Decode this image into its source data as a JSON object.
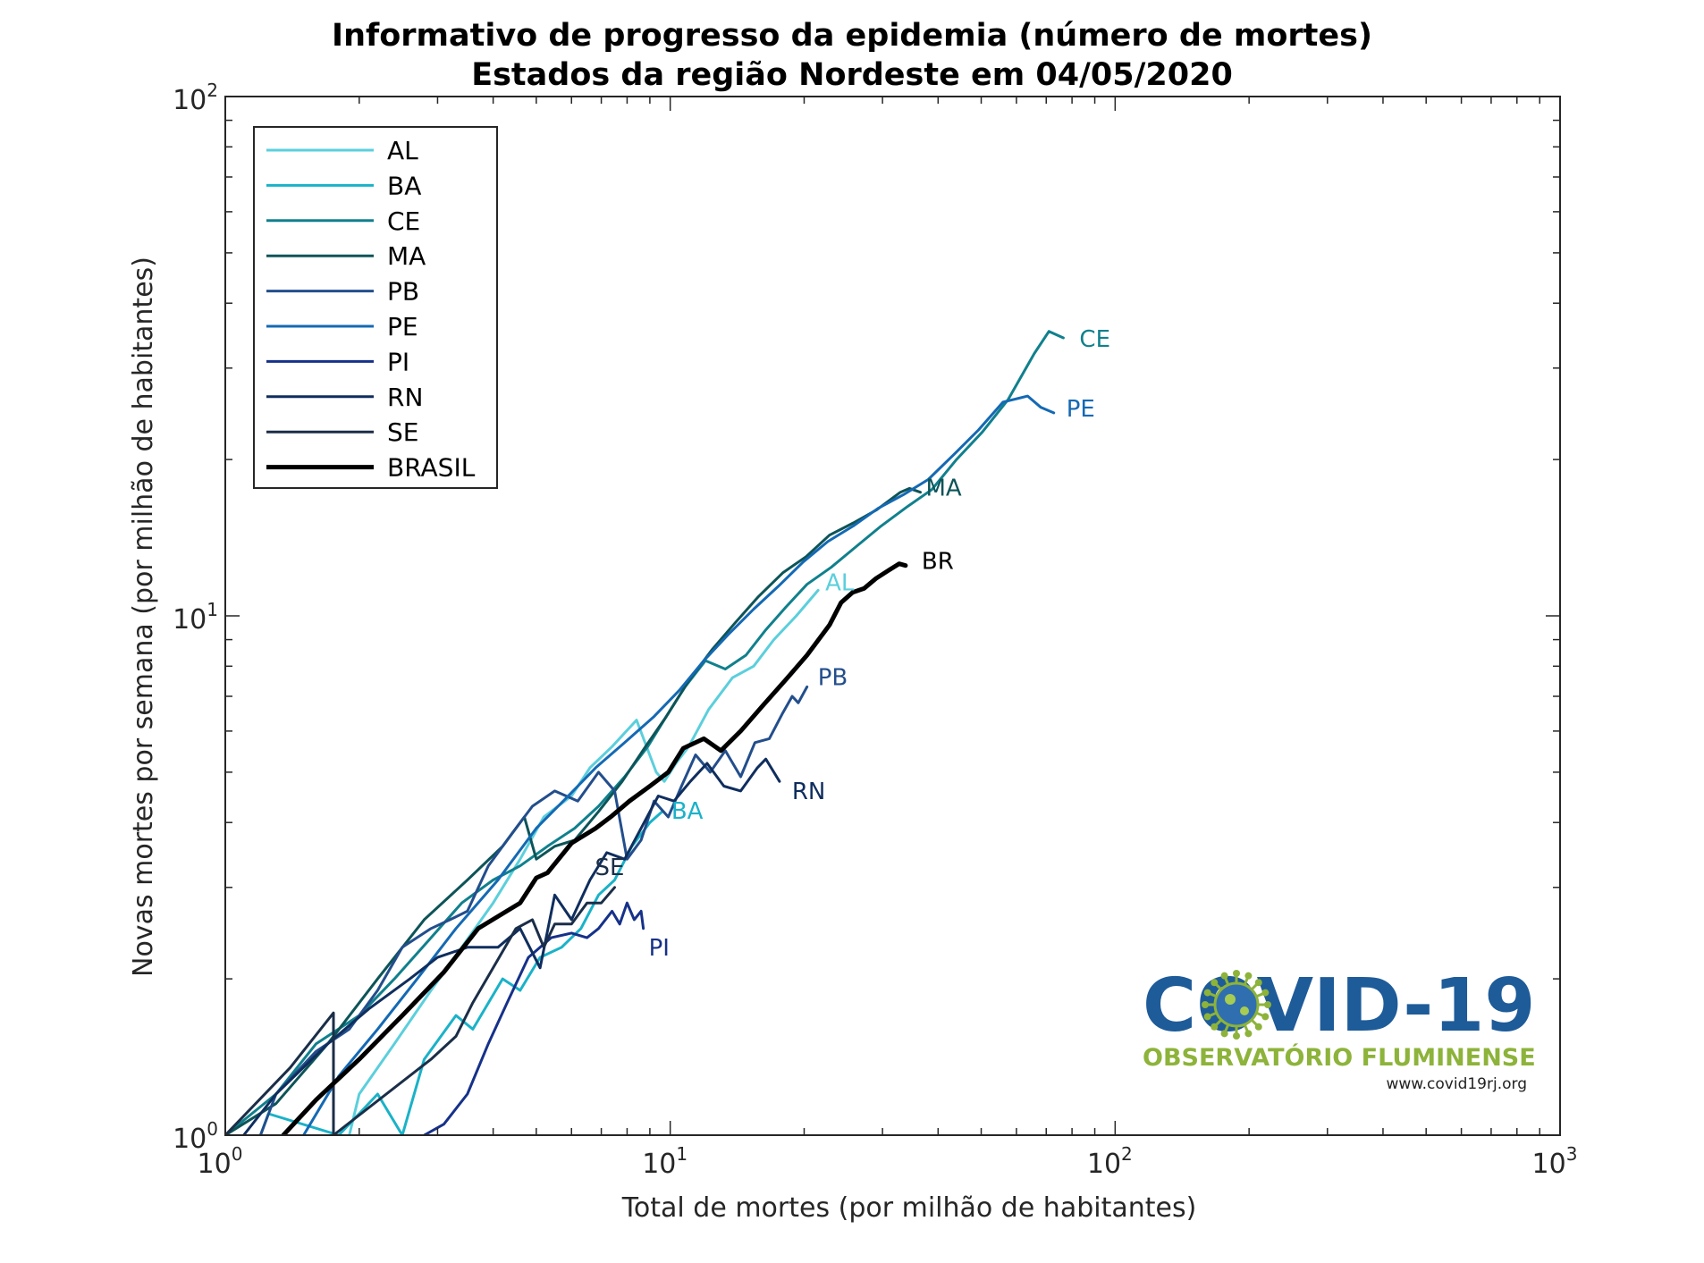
{
  "chart_data": {
    "type": "line",
    "title": [
      "Informativo de progresso da epidemia (número de mortes)",
      "Estados da região Nordeste em 04/05/2020"
    ],
    "xlabel": "Total de mortes (por milhão de habitantes)",
    "ylabel": "Novas mortes por semana (por milhão de habitantes)",
    "xscale": "log",
    "yscale": "log",
    "xlim": [
      1,
      1000
    ],
    "ylim": [
      1,
      100
    ],
    "x_ticks": [
      {
        "base": "10",
        "exp": "0"
      },
      {
        "base": "10",
        "exp": "1"
      },
      {
        "base": "10",
        "exp": "2"
      },
      {
        "base": "10",
        "exp": "3"
      }
    ],
    "y_ticks": [
      {
        "base": "10",
        "exp": "0"
      },
      {
        "base": "10",
        "exp": "1"
      },
      {
        "base": "10",
        "exp": "2"
      }
    ],
    "grid": false,
    "legend_position": "top-left",
    "series": [
      {
        "name": "AL",
        "end_label": "AL",
        "color": "#5bcfdc",
        "width": 3,
        "points": [
          [
            1.9,
            1.0
          ],
          [
            2.0,
            1.2
          ],
          [
            2.4,
            1.5
          ],
          [
            2.9,
            1.9
          ],
          [
            3.4,
            2.3
          ],
          [
            4.0,
            2.8
          ],
          [
            4.6,
            3.4
          ],
          [
            5.2,
            4.1
          ],
          [
            6.0,
            4.5
          ],
          [
            6.6,
            5.1
          ],
          [
            7.4,
            5.6
          ],
          [
            8.4,
            6.3
          ],
          [
            9.3,
            5.0
          ],
          [
            9.7,
            4.8
          ],
          [
            10.3,
            5.2
          ],
          [
            11.0,
            5.6
          ],
          [
            12.2,
            6.6
          ],
          [
            13.8,
            7.6
          ],
          [
            15.4,
            8.0
          ],
          [
            17.1,
            9.0
          ],
          [
            19.2,
            10.0
          ],
          [
            21.5,
            11.2
          ]
        ]
      },
      {
        "name": "BA",
        "end_label": "BA",
        "color": "#1ab2c8",
        "width": 3,
        "points": [
          [
            1.2,
            1.0
          ],
          [
            1.25,
            1.1
          ],
          [
            1.8,
            1.0
          ],
          [
            2.2,
            1.2
          ],
          [
            2.5,
            1.0
          ],
          [
            2.8,
            1.4
          ],
          [
            3.3,
            1.7
          ],
          [
            3.6,
            1.6
          ],
          [
            4.2,
            2.0
          ],
          [
            4.6,
            1.9
          ],
          [
            5.1,
            2.2
          ],
          [
            5.7,
            2.3
          ],
          [
            6.3,
            2.5
          ],
          [
            6.9,
            2.9
          ],
          [
            7.5,
            3.1
          ],
          [
            8.2,
            3.6
          ],
          [
            9.0,
            4.0
          ],
          [
            9.6,
            4.2
          ]
        ]
      },
      {
        "name": "CE",
        "end_label": "CE",
        "color": "#10808d",
        "width": 3,
        "points": [
          [
            1.0,
            1.0
          ],
          [
            1.3,
            1.2
          ],
          [
            1.6,
            1.5
          ],
          [
            2.0,
            1.7
          ],
          [
            2.4,
            2.0
          ],
          [
            2.9,
            2.4
          ],
          [
            3.4,
            2.8
          ],
          [
            4.0,
            3.1
          ],
          [
            4.6,
            3.3
          ],
          [
            5.3,
            3.6
          ],
          [
            6.1,
            3.9
          ],
          [
            6.9,
            4.3
          ],
          [
            7.9,
            4.9
          ],
          [
            8.9,
            5.6
          ],
          [
            9.8,
            6.4
          ],
          [
            10.8,
            7.3
          ],
          [
            12.0,
            8.2
          ],
          [
            13.3,
            7.9
          ],
          [
            14.8,
            8.4
          ],
          [
            16.4,
            9.4
          ],
          [
            18.2,
            10.4
          ],
          [
            20.3,
            11.5
          ],
          [
            23.0,
            12.4
          ],
          [
            26.2,
            13.6
          ],
          [
            29.8,
            14.9
          ],
          [
            34.0,
            16.2
          ],
          [
            38.7,
            17.5
          ],
          [
            44.0,
            20.0
          ],
          [
            50.3,
            22.6
          ],
          [
            57.5,
            26.1
          ],
          [
            65.8,
            32.0
          ],
          [
            71.0,
            35.3
          ],
          [
            76.5,
            34.3
          ]
        ]
      },
      {
        "name": "MA",
        "end_label": "MA",
        "color": "#0d5458",
        "width": 3,
        "points": [
          [
            1.0,
            1.0
          ],
          [
            1.3,
            1.15
          ],
          [
            1.7,
            1.5
          ],
          [
            2.2,
            2.0
          ],
          [
            2.8,
            2.6
          ],
          [
            3.5,
            3.1
          ],
          [
            4.2,
            3.6
          ],
          [
            4.7,
            4.1
          ],
          [
            5.0,
            3.4
          ],
          [
            5.5,
            3.6
          ],
          [
            6.1,
            3.7
          ],
          [
            6.9,
            4.2
          ],
          [
            7.8,
            4.8
          ],
          [
            8.8,
            5.6
          ],
          [
            9.8,
            6.4
          ],
          [
            11.0,
            7.5
          ],
          [
            12.4,
            8.6
          ],
          [
            14.0,
            9.7
          ],
          [
            15.8,
            10.9
          ],
          [
            17.9,
            12.1
          ],
          [
            20.2,
            13.0
          ],
          [
            22.8,
            14.3
          ],
          [
            25.8,
            15.1
          ],
          [
            29.1,
            16.0
          ],
          [
            32.9,
            17.3
          ],
          [
            34.5,
            17.6
          ],
          [
            36.5,
            17.3
          ]
        ]
      },
      {
        "name": "PB",
        "end_label": "PB",
        "color": "#234e8c",
        "width": 3,
        "points": [
          [
            1.2,
            1.0
          ],
          [
            1.3,
            1.2
          ],
          [
            1.6,
            1.45
          ],
          [
            1.9,
            1.6
          ],
          [
            2.2,
            1.9
          ],
          [
            2.5,
            2.3
          ],
          [
            2.9,
            2.5
          ],
          [
            3.2,
            2.6
          ],
          [
            3.5,
            2.7
          ],
          [
            3.9,
            3.3
          ],
          [
            4.4,
            3.8
          ],
          [
            4.9,
            4.3
          ],
          [
            5.5,
            4.6
          ],
          [
            6.2,
            4.4
          ],
          [
            6.9,
            5.0
          ],
          [
            7.5,
            4.6
          ],
          [
            8.0,
            3.4
          ],
          [
            8.6,
            3.7
          ],
          [
            9.2,
            4.4
          ],
          [
            9.9,
            4.1
          ],
          [
            10.6,
            4.7
          ],
          [
            11.4,
            5.4
          ],
          [
            12.3,
            5.0
          ],
          [
            13.3,
            5.5
          ],
          [
            14.4,
            4.9
          ],
          [
            15.5,
            5.7
          ],
          [
            16.7,
            5.8
          ],
          [
            17.9,
            6.5
          ],
          [
            18.8,
            7.0
          ],
          [
            19.4,
            6.8
          ],
          [
            20.3,
            7.3
          ]
        ]
      },
      {
        "name": "PE",
        "end_label": "PE",
        "color": "#1469b4",
        "width": 3,
        "points": [
          [
            1.5,
            1.0
          ],
          [
            1.8,
            1.3
          ],
          [
            2.2,
            1.6
          ],
          [
            2.7,
            2.0
          ],
          [
            3.3,
            2.5
          ],
          [
            4.1,
            3.1
          ],
          [
            5.0,
            3.9
          ],
          [
            5.9,
            4.5
          ],
          [
            6.8,
            5.1
          ],
          [
            7.9,
            5.7
          ],
          [
            9.2,
            6.4
          ],
          [
            10.5,
            7.2
          ],
          [
            11.9,
            8.2
          ],
          [
            13.5,
            9.2
          ],
          [
            15.4,
            10.3
          ],
          [
            17.5,
            11.4
          ],
          [
            19.9,
            12.7
          ],
          [
            22.6,
            13.9
          ],
          [
            25.8,
            14.9
          ],
          [
            29.3,
            16.1
          ],
          [
            33.4,
            17.1
          ],
          [
            38.0,
            18.3
          ],
          [
            43.3,
            20.4
          ],
          [
            49.3,
            22.8
          ],
          [
            56.0,
            25.8
          ],
          [
            63.6,
            26.5
          ],
          [
            68.1,
            25.2
          ],
          [
            72.8,
            24.6
          ]
        ]
      },
      {
        "name": "PI",
        "end_label": "PI",
        "color": "#16318a",
        "width": 3,
        "points": [
          [
            2.8,
            1.0
          ],
          [
            3.1,
            1.05
          ],
          [
            3.5,
            1.2
          ],
          [
            3.9,
            1.5
          ],
          [
            4.3,
            1.8
          ],
          [
            4.8,
            2.2
          ],
          [
            5.4,
            2.4
          ],
          [
            6.0,
            2.45
          ],
          [
            6.5,
            2.4
          ],
          [
            6.9,
            2.5
          ],
          [
            7.4,
            2.7
          ],
          [
            7.7,
            2.55
          ],
          [
            8.0,
            2.8
          ],
          [
            8.3,
            2.6
          ],
          [
            8.6,
            2.7
          ],
          [
            8.7,
            2.5
          ]
        ]
      },
      {
        "name": "RN",
        "end_label": "RN",
        "color": "#0f2e5e",
        "width": 3,
        "points": [
          [
            1.1,
            1.0
          ],
          [
            1.3,
            1.2
          ],
          [
            1.7,
            1.5
          ],
          [
            2.1,
            1.75
          ],
          [
            2.6,
            2.0
          ],
          [
            3.0,
            2.2
          ],
          [
            3.5,
            2.3
          ],
          [
            4.1,
            2.3
          ],
          [
            4.6,
            2.5
          ],
          [
            5.1,
            2.1
          ],
          [
            5.5,
            2.9
          ],
          [
            6.0,
            2.6
          ],
          [
            6.6,
            3.1
          ],
          [
            7.2,
            3.5
          ],
          [
            7.9,
            3.4
          ],
          [
            8.6,
            3.9
          ],
          [
            9.4,
            4.5
          ],
          [
            10.2,
            4.4
          ],
          [
            11.1,
            4.8
          ],
          [
            12.1,
            5.2
          ],
          [
            13.2,
            4.7
          ],
          [
            14.4,
            4.6
          ],
          [
            15.7,
            5.1
          ],
          [
            16.4,
            5.3
          ],
          [
            17.1,
            5.0
          ],
          [
            17.6,
            4.8
          ]
        ]
      },
      {
        "name": "SE",
        "end_label": "SE",
        "color": "#1b2e48",
        "width": 3,
        "points": [
          [
            1.0,
            1.0
          ],
          [
            1.4,
            1.35
          ],
          [
            1.75,
            1.72
          ],
          [
            1.75,
            1.0
          ],
          [
            2.9,
            1.4
          ],
          [
            3.3,
            1.55
          ],
          [
            3.6,
            1.8
          ],
          [
            4.0,
            2.1
          ],
          [
            4.5,
            2.5
          ],
          [
            4.9,
            2.6
          ],
          [
            5.2,
            2.3
          ],
          [
            5.5,
            2.55
          ],
          [
            6.0,
            2.55
          ],
          [
            6.5,
            2.8
          ],
          [
            7.0,
            2.8
          ],
          [
            7.5,
            3.0
          ]
        ]
      },
      {
        "name": "BRASIL",
        "end_label": "BR",
        "color": "#000000",
        "width": 5,
        "points": [
          [
            1.35,
            1.0
          ],
          [
            1.6,
            1.17
          ],
          [
            2.0,
            1.4
          ],
          [
            2.5,
            1.7
          ],
          [
            3.1,
            2.06
          ],
          [
            3.7,
            2.5
          ],
          [
            4.6,
            2.8
          ],
          [
            5.0,
            3.13
          ],
          [
            5.3,
            3.2
          ],
          [
            6.0,
            3.65
          ],
          [
            6.8,
            3.9
          ],
          [
            7.4,
            4.12
          ],
          [
            8.1,
            4.4
          ],
          [
            9.0,
            4.7
          ],
          [
            9.9,
            5.0
          ],
          [
            10.7,
            5.56
          ],
          [
            11.9,
            5.8
          ],
          [
            13.0,
            5.5
          ],
          [
            14.4,
            6.0
          ],
          [
            16.1,
            6.7
          ],
          [
            18.1,
            7.5
          ],
          [
            20.3,
            8.4
          ],
          [
            22.8,
            9.6
          ],
          [
            24.2,
            10.6
          ],
          [
            25.7,
            11.1
          ],
          [
            27.3,
            11.3
          ],
          [
            29.0,
            11.8
          ],
          [
            30.8,
            12.2
          ],
          [
            32.7,
            12.6
          ],
          [
            33.8,
            12.5
          ]
        ]
      }
    ]
  },
  "logo": {
    "title": "COVID-19",
    "subtitle": "OBSERVATÓRIO FLUMINENSE",
    "url": "www.covid19rj.org"
  }
}
